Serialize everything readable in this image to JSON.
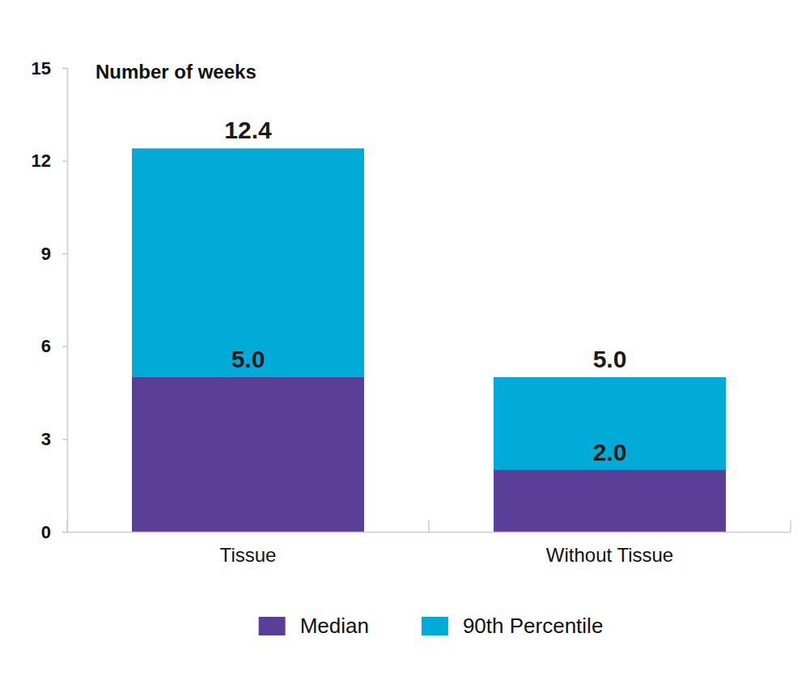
{
  "chart_data": {
    "type": "bar",
    "y_label": "Number of weeks",
    "categories": [
      "Tissue",
      "Without Tissue"
    ],
    "series": [
      {
        "name": "Median",
        "color": "#5a3e98",
        "values": [
          5,
          2
        ],
        "value_labels": [
          "5.0",
          "2.0"
        ]
      },
      {
        "name": "90th Percentile",
        "color": "#00acd7",
        "values": [
          12.4,
          5
        ],
        "value_labels": [
          "12.4",
          "5.0"
        ]
      }
    ],
    "ylim": [
      0,
      15
    ],
    "yticks": [
      0,
      3,
      6,
      9,
      12,
      15
    ],
    "data_labels": true,
    "stacked": false,
    "grid": false,
    "legend": "bottom"
  }
}
